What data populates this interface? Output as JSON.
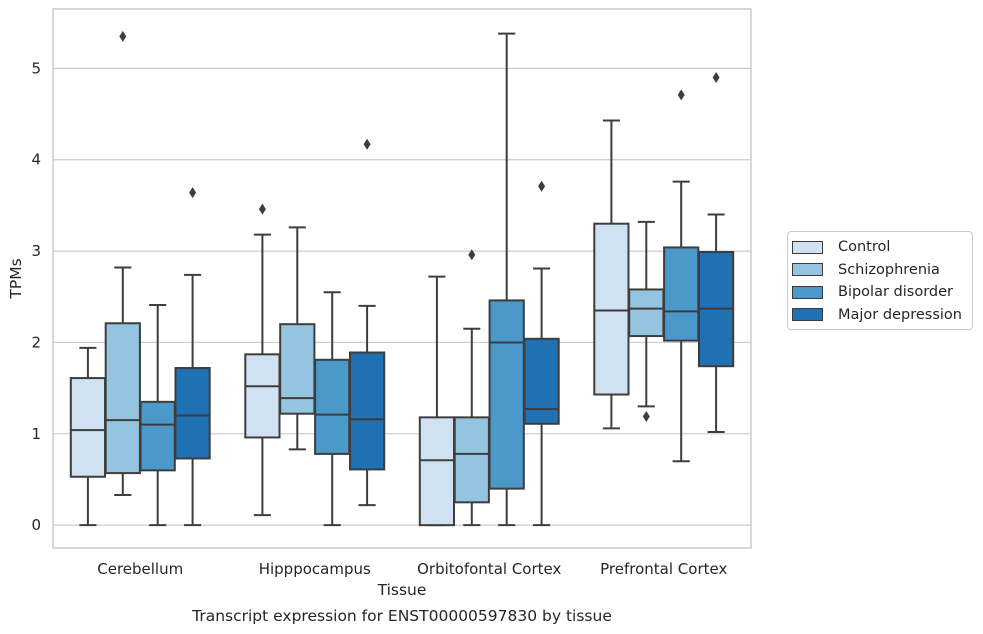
{
  "chart_data": {
    "type": "boxplot",
    "xlabel": "Tissue",
    "ylabel": "TPMs",
    "caption": "Transcript expression for ENST00000597830 by tissue",
    "ylim": [
      -0.25,
      5.65
    ],
    "yticks": [
      0,
      1,
      2,
      3,
      4,
      5
    ],
    "grid": true,
    "legend_position": "right",
    "categories": [
      "Cerebellum",
      "Hipppocampus",
      "Orbitofontal Cortex",
      "Prefrontal Cortex"
    ],
    "series": [
      {
        "name": "Control",
        "color": "#d0e1f2",
        "boxes": [
          {
            "whisker_low": 0.0,
            "q1": 0.53,
            "median": 1.04,
            "q3": 1.61,
            "whisker_high": 1.94,
            "outliers": []
          },
          {
            "whisker_low": 0.11,
            "q1": 0.96,
            "median": 1.52,
            "q3": 1.87,
            "whisker_high": 3.18,
            "outliers": [
              3.46
            ]
          },
          {
            "whisker_low": 0.0,
            "q1": 0.0,
            "median": 0.71,
            "q3": 1.18,
            "whisker_high": 2.72,
            "outliers": []
          },
          {
            "whisker_low": 1.06,
            "q1": 1.43,
            "median": 2.35,
            "q3": 3.3,
            "whisker_high": 4.43,
            "outliers": []
          }
        ]
      },
      {
        "name": "Schizophrenia",
        "color": "#94c4df",
        "boxes": [
          {
            "whisker_low": 0.33,
            "q1": 0.57,
            "median": 1.15,
            "q3": 2.21,
            "whisker_high": 2.82,
            "outliers": [
              5.35
            ]
          },
          {
            "whisker_low": 0.83,
            "q1": 1.22,
            "median": 1.39,
            "q3": 2.2,
            "whisker_high": 3.26,
            "outliers": []
          },
          {
            "whisker_low": 0.0,
            "q1": 0.25,
            "median": 0.78,
            "q3": 1.18,
            "whisker_high": 2.15,
            "outliers": [
              2.96
            ]
          },
          {
            "whisker_low": 1.3,
            "q1": 2.07,
            "median": 2.37,
            "q3": 2.58,
            "whisker_high": 3.32,
            "outliers": [
              1.19
            ]
          }
        ]
      },
      {
        "name": "Bipolar disorder",
        "color": "#4b98ca",
        "boxes": [
          {
            "whisker_low": 0.0,
            "q1": 0.6,
            "median": 1.1,
            "q3": 1.35,
            "whisker_high": 2.41,
            "outliers": []
          },
          {
            "whisker_low": 0.0,
            "q1": 0.78,
            "median": 1.21,
            "q3": 1.81,
            "whisker_high": 2.55,
            "outliers": []
          },
          {
            "whisker_low": 0.0,
            "q1": 0.4,
            "median": 2.0,
            "q3": 2.46,
            "whisker_high": 5.38,
            "outliers": []
          },
          {
            "whisker_low": 0.7,
            "q1": 2.02,
            "median": 2.34,
            "q3": 3.04,
            "whisker_high": 3.76,
            "outliers": [
              4.71
            ]
          }
        ]
      },
      {
        "name": "Major depression",
        "color": "#2070b4",
        "boxes": [
          {
            "whisker_low": 0.0,
            "q1": 0.73,
            "median": 1.2,
            "q3": 1.72,
            "whisker_high": 2.74,
            "outliers": [
              3.64
            ]
          },
          {
            "whisker_low": 0.22,
            "q1": 0.61,
            "median": 1.16,
            "q3": 1.89,
            "whisker_high": 2.4,
            "outliers": [
              4.17
            ]
          },
          {
            "whisker_low": 0.0,
            "q1": 1.11,
            "median": 1.27,
            "q3": 2.04,
            "whisker_high": 2.81,
            "outliers": [
              3.71
            ]
          },
          {
            "whisker_low": 1.02,
            "q1": 1.74,
            "median": 2.37,
            "q3": 2.99,
            "whisker_high": 3.4,
            "outliers": [
              4.9
            ]
          }
        ]
      }
    ]
  }
}
